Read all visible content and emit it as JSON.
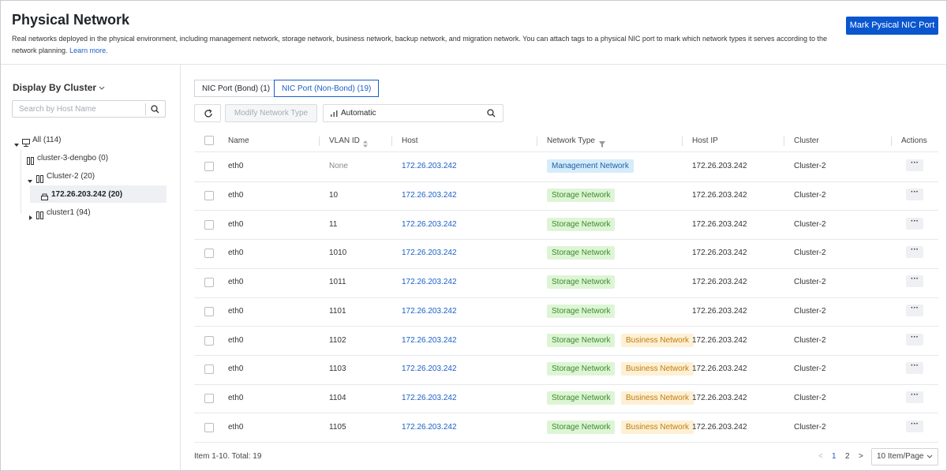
{
  "header": {
    "title": "Physical Network",
    "description": "Real networks deployed in the physical environment, including management network, storage network, business network, backup network, and migration network. You can attach tags to a physical NIC port to mark which network types it serves according to the network planning.",
    "learn_more": "Learn more.",
    "button": "Mark Pysical NIC Port"
  },
  "sidebar": {
    "display_by": "Display By Cluster",
    "search_placeholder": "Search by Host Name",
    "tree": [
      "All (114)",
      "cluster-3-dengbo (0)",
      "Cluster-2 (20)",
      "172.26.203.242 (20)",
      "cluster1 (94)"
    ]
  },
  "tabs": [
    "NIC Port (Bond) (1)",
    "NIC Port (Non-Bond) (19)"
  ],
  "toolbar": {
    "modify": "Modify Network Type",
    "filter": "Automatic"
  },
  "table": {
    "columns": [
      "Name",
      "VLAN ID",
      "Host",
      "Network Type",
      "Host IP",
      "Cluster",
      "Actions"
    ],
    "rows": [
      [
        "eth0",
        "None",
        "172.26.203.242",
        [
          {
            "label": "Management Network",
            "color": "#1e5fa6",
            "background": "#d5ecfb"
          }
        ],
        "172.26.203.242",
        "Cluster-2"
      ],
      [
        "eth0",
        10,
        "172.26.203.242",
        [
          {
            "label": "Storage Network",
            "color": "#3c8a2c",
            "background": "#ddf5d5"
          }
        ],
        "172.26.203.242",
        "Cluster-2"
      ],
      [
        "eth0",
        11,
        "172.26.203.242",
        [
          {
            "label": "Storage Network",
            "color": "#3c8a2c",
            "background": "#ddf5d5"
          }
        ],
        "172.26.203.242",
        "Cluster-2"
      ],
      [
        "eth0",
        1010,
        "172.26.203.242",
        [
          {
            "label": "Storage Network",
            "color": "#3c8a2c",
            "background": "#ddf5d5"
          }
        ],
        "172.26.203.242",
        "Cluster-2"
      ],
      [
        "eth0",
        1011,
        "172.26.203.242",
        [
          {
            "label": "Storage Network",
            "color": "#3c8a2c",
            "background": "#ddf5d5"
          }
        ],
        "172.26.203.242",
        "Cluster-2"
      ],
      [
        "eth0",
        1101,
        "172.26.203.242",
        [
          {
            "label": "Storage Network",
            "color": "#3c8a2c",
            "background": "#ddf5d5"
          }
        ],
        "172.26.203.242",
        "Cluster-2"
      ],
      [
        "eth0",
        1102,
        "172.26.203.242",
        [
          {
            "label": "Storage Network",
            "color": "#3c8a2c",
            "background": "#ddf5d5"
          },
          {
            "label": "Business Network",
            "color": "#c27c0e",
            "background": "#fdf0d4"
          }
        ],
        "172.26.203.242",
        "Cluster-2"
      ],
      [
        "eth0",
        1103,
        "172.26.203.242",
        [
          {
            "label": "Storage Network",
            "color": "#3c8a2c",
            "background": "#ddf5d5"
          },
          {
            "label": "Business Network",
            "color": "#c27c0e",
            "background": "#fdf0d4"
          }
        ],
        "172.26.203.242",
        "Cluster-2"
      ],
      [
        "eth0",
        1104,
        "172.26.203.242",
        [
          {
            "label": "Storage Network",
            "color": "#3c8a2c",
            "background": "#ddf5d5"
          },
          {
            "label": "Business Network",
            "color": "#c27c0e",
            "background": "#fdf0d4"
          }
        ],
        "172.26.203.242",
        "Cluster-2"
      ],
      [
        "eth0",
        1105,
        "172.26.203.242",
        [
          {
            "label": "Storage Network",
            "color": "#3c8a2c",
            "background": "#ddf5d5"
          },
          {
            "label": "Business Network",
            "color": "#c27c0e",
            "background": "#fdf0d4"
          }
        ],
        "172.26.203.242",
        "Cluster-2"
      ]
    ]
  },
  "footer": {
    "summary": "Item 1-10. Total: 19",
    "pages": [
      "1",
      "2"
    ],
    "page_size": "10 Item/Page"
  }
}
